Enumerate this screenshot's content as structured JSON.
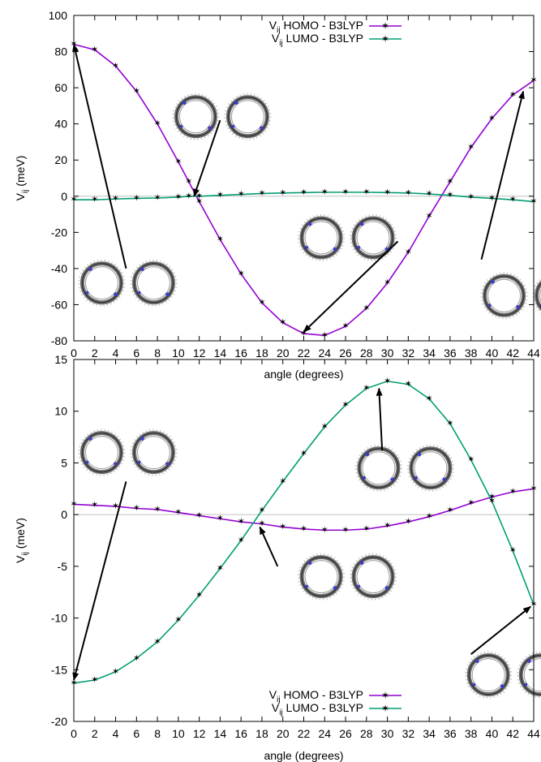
{
  "chart_data": [
    {
      "type": "line",
      "xlabel": "angle (degrees)",
      "ylabel": {
        "main": "V",
        "sub": "ij",
        "unit": " (meV)"
      },
      "xlim": [
        0,
        44
      ],
      "ylim": [
        -80,
        100
      ],
      "xticks": [
        0,
        2,
        4,
        6,
        8,
        10,
        12,
        14,
        16,
        18,
        20,
        22,
        24,
        26,
        28,
        30,
        32,
        34,
        36,
        38,
        40,
        42,
        44
      ],
      "yticks": [
        -80,
        -60,
        -40,
        -20,
        0,
        20,
        40,
        60,
        80,
        100
      ],
      "legend_position": "top",
      "zero_line": true,
      "series": [
        {
          "name": {
            "main": "V",
            "sub": "ij",
            "rest": " HOMO - B3LYP"
          },
          "color": "#9400d3",
          "x": [
            0,
            2,
            4,
            6,
            8,
            10,
            11,
            12,
            14,
            16,
            18,
            20,
            22,
            24,
            26,
            28,
            30,
            32,
            34,
            36,
            38,
            40,
            42,
            44
          ],
          "y": [
            84,
            81,
            72,
            58,
            40,
            19,
            8,
            -3,
            -24,
            -43,
            -59,
            -70,
            -76,
            -77,
            -72,
            -62,
            -48,
            -31,
            -11,
            8,
            27,
            43,
            56,
            64
          ]
        },
        {
          "name": {
            "main": "V",
            "sub": "ij",
            "rest": " LUMO - B3LYP"
          },
          "color": "#009e73",
          "x": [
            0,
            2,
            4,
            6,
            8,
            10,
            11,
            12,
            14,
            16,
            18,
            20,
            22,
            24,
            26,
            28,
            30,
            32,
            34,
            36,
            38,
            40,
            42,
            44
          ],
          "y": [
            -2,
            -2,
            -1.5,
            -1.2,
            -1,
            -0.5,
            0,
            0,
            0.5,
            1,
            1.5,
            1.8,
            2,
            2.2,
            2.2,
            2.2,
            2,
            1.8,
            1.2,
            0.5,
            -0.5,
            -1.2,
            -2,
            -3
          ]
        }
      ],
      "molecule_pairs": [
        {
          "place": [
            0.5,
            -48
          ]
        },
        {
          "place": [
            9.5,
            44
          ]
        },
        {
          "place": [
            21.5,
            -23
          ]
        },
        {
          "place": [
            39.0,
            -55
          ]
        }
      ],
      "arrows": [
        {
          "from": [
            5,
            -40
          ],
          "to": [
            0,
            84
          ]
        },
        {
          "from": [
            14,
            42
          ],
          "to": [
            11.5,
            0
          ]
        },
        {
          "from": [
            31,
            -25
          ],
          "to": [
            22,
            -75
          ]
        },
        {
          "from": [
            39,
            -35
          ],
          "to": [
            43,
            58
          ]
        }
      ]
    },
    {
      "type": "line",
      "xlabel": "angle (degrees)",
      "ylabel": {
        "main": "V",
        "sub": "ij",
        "unit": " (meV)"
      },
      "xlim": [
        0,
        44
      ],
      "ylim": [
        -20,
        15
      ],
      "xticks": [
        0,
        2,
        4,
        6,
        8,
        10,
        12,
        14,
        16,
        18,
        20,
        22,
        24,
        26,
        28,
        30,
        32,
        34,
        36,
        38,
        40,
        42,
        44
      ],
      "yticks": [
        -20,
        -15,
        -10,
        -5,
        0,
        5,
        10,
        15
      ],
      "legend_position": "bottom",
      "zero_line": true,
      "series": [
        {
          "name": {
            "main": "V",
            "sub": "ij",
            "rest": " HOMO - B3LYP"
          },
          "color": "#9400d3",
          "x": [
            0,
            2,
            4,
            6,
            8,
            10,
            12,
            14,
            16,
            18,
            20,
            22,
            24,
            26,
            28,
            30,
            32,
            34,
            36,
            38,
            40,
            42,
            44
          ],
          "y": [
            1,
            0.9,
            0.8,
            0.6,
            0.5,
            0.2,
            -0.1,
            -0.4,
            -0.7,
            -0.9,
            -1.2,
            -1.4,
            -1.5,
            -1.5,
            -1.4,
            -1.1,
            -0.7,
            -0.2,
            0.4,
            1.1,
            1.7,
            2.2,
            2.5
          ]
        },
        {
          "name": {
            "main": "V",
            "sub": "ij",
            "rest": " LUMO - B3LYP"
          },
          "color": "#009e73",
          "x": [
            0,
            2,
            4,
            6,
            8,
            10,
            12,
            14,
            16,
            18,
            20,
            22,
            24,
            26,
            28,
            30,
            32,
            34,
            36,
            38,
            40,
            42,
            44
          ],
          "y": [
            -16.3,
            -16,
            -15.2,
            -13.9,
            -12.3,
            -10.2,
            -7.8,
            -5.2,
            -2.5,
            0.4,
            3.2,
            5.9,
            8.5,
            10.6,
            12.2,
            12.9,
            12.6,
            11.2,
            8.8,
            5.3,
            1.3,
            -3.5,
            -8.7
          ]
        }
      ],
      "molecule_pairs": [
        {
          "place": [
            0.5,
            6
          ]
        },
        {
          "place": [
            21.5,
            -6
          ]
        },
        {
          "place": [
            27.0,
            4.5
          ]
        },
        {
          "place": [
            37.5,
            -15.5
          ]
        }
      ],
      "arrows": [
        {
          "from": [
            5,
            3.2
          ],
          "to": [
            0,
            -16
          ]
        },
        {
          "from": [
            19.5,
            -5
          ],
          "to": [
            17.8,
            -1.2
          ]
        },
        {
          "from": [
            29.5,
            6.2
          ],
          "to": [
            29.2,
            12.2
          ]
        },
        {
          "from": [
            38,
            -13.5
          ],
          "to": [
            43.7,
            -8.9
          ]
        }
      ]
    }
  ]
}
